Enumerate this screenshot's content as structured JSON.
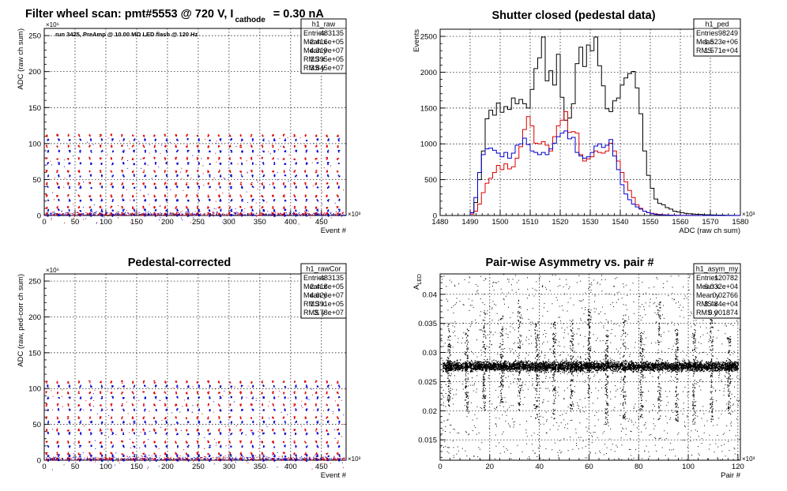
{
  "colors": {
    "black": "#000000",
    "red": "#dd0000",
    "blue": "#0000cc",
    "grid": "#000000",
    "background": "#ffffff"
  },
  "chart_data": [
    {
      "id": "raw",
      "type": "scatter",
      "title_parts": [
        "Filter wheel scan: pmt#5553 @   720 V, I",
        "cathode",
        "= 0.30 nA"
      ],
      "annotation": "run 3425, PreAmp @ 10.00 MΩ LED flash @  120 Hz",
      "xlabel": "Event #",
      "ylabel": "ADC (raw ch sum)",
      "x_multiplier": "×10³",
      "y_multiplier": "×10⁶",
      "xlim": [
        0,
        490
      ],
      "ylim": [
        0,
        260
      ],
      "x_ticks": [
        0,
        50,
        100,
        150,
        200,
        250,
        300,
        350,
        400,
        450
      ],
      "y_ticks": [
        0,
        50,
        100,
        150,
        200,
        250
      ],
      "grid": true,
      "stats": {
        "name": "h1_raw",
        "rows": [
          [
            "Entries",
            "483135"
          ],
          [
            "Mean x",
            "2.416e+05"
          ],
          [
            "Mean y",
            "4.319e+07"
          ],
          [
            "RMS x",
            "1.395e+05"
          ],
          [
            "RMS y",
            "3.845e+07"
          ]
        ]
      },
      "series": [
        {
          "color": "red",
          "levels": [
            112,
            97,
            80,
            62,
            45,
            28,
            12,
            3
          ]
        },
        {
          "color": "blue",
          "levels": [
            106,
            90,
            73,
            56,
            40,
            22,
            8,
            1
          ]
        }
      ],
      "cluster_period": 17.5
    },
    {
      "id": "ped",
      "type": "histogram",
      "title": "Shutter closed (pedestal data)",
      "xlabel": "ADC (raw ch sum)",
      "ylabel": "Events",
      "x_multiplier": "×10³",
      "xlim": [
        1480,
        1580
      ],
      "ylim": [
        0,
        2600
      ],
      "x_ticks": [
        1480,
        1490,
        1500,
        1510,
        1520,
        1530,
        1540,
        1550,
        1560,
        1570,
        1580
      ],
      "y_ticks": [
        0,
        500,
        1000,
        1500,
        2000,
        2500
      ],
      "grid": true,
      "stats": {
        "name": "h1_ped",
        "rows": [
          [
            "Entries",
            "98249"
          ],
          [
            "Mean",
            "1.523e+06"
          ],
          [
            "RMS",
            "1.571e+04"
          ]
        ]
      },
      "bin_start": 1490,
      "bin_width": 1.25,
      "series": [
        {
          "color": "black",
          "values": [
            40,
            180,
            500,
            900,
            1350,
            1470,
            1400,
            1570,
            1440,
            1520,
            1480,
            1640,
            1560,
            1620,
            1560,
            1500,
            1760,
            2050,
            2200,
            2490,
            1880,
            2020,
            1820,
            2250,
            1650,
            1330,
            1360,
            1560,
            2120,
            2350,
            2080,
            2380,
            2300,
            2490,
            2090,
            1810,
            1490,
            1450,
            1600,
            1640,
            1820,
            1920,
            1980,
            2010,
            1780,
            1420,
            900,
            560,
            380,
            230,
            170,
            150,
            110,
            90,
            60,
            50,
            40,
            30,
            25,
            20,
            15,
            15,
            10,
            10,
            8,
            6,
            5,
            5,
            3,
            3,
            2,
            2
          ]
        },
        {
          "color": "red",
          "values": [
            20,
            60,
            160,
            320,
            450,
            520,
            600,
            700,
            640,
            720,
            650,
            680,
            800,
            960,
            1200,
            1380,
            1250,
            1010,
            1000,
            1030,
            980,
            900,
            1100,
            1250,
            1330,
            1450,
            1160,
            1170,
            1150,
            850,
            760,
            790,
            820,
            900,
            880,
            870,
            900,
            1010,
            900,
            760,
            600,
            470,
            350,
            250,
            150,
            100,
            60,
            40,
            30,
            20,
            15,
            10,
            8,
            5,
            4,
            3,
            2,
            2,
            1,
            1,
            1,
            0,
            0,
            0,
            0,
            0,
            0,
            0,
            0,
            0,
            0,
            0
          ]
        },
        {
          "color": "blue",
          "values": [
            40,
            250,
            600,
            850,
            930,
            940,
            910,
            870,
            820,
            880,
            800,
            870,
            980,
            1000,
            1080,
            990,
            900,
            880,
            850,
            880,
            850,
            930,
            1010,
            1100,
            1150,
            1180,
            1070,
            1090,
            880,
            830,
            800,
            820,
            880,
            970,
            1000,
            950,
            980,
            1060,
            830,
            640,
            430,
            300,
            220,
            160,
            120,
            90,
            60,
            40,
            25,
            15,
            10,
            8,
            5,
            4,
            3,
            2,
            2,
            1,
            1,
            1,
            0,
            0,
            0,
            0,
            0,
            0,
            0,
            0,
            0,
            0,
            0,
            0
          ]
        }
      ]
    },
    {
      "id": "rawcor",
      "type": "scatter",
      "title": "Pedestal-corrected",
      "xlabel": "Event #",
      "ylabel": "ADC (raw, ped-corr ch sum)",
      "x_multiplier": "×10³",
      "y_multiplier": "×10⁶",
      "xlim": [
        0,
        490
      ],
      "ylim": [
        0,
        260
      ],
      "x_ticks": [
        0,
        50,
        100,
        150,
        200,
        250,
        300,
        350,
        400,
        450
      ],
      "y_ticks": [
        0,
        50,
        100,
        150,
        200,
        250
      ],
      "grid": true,
      "stats": {
        "name": "h1_rawCor",
        "rows": [
          [
            "Entries",
            "483135"
          ],
          [
            "Mean x",
            "2.418e+05"
          ],
          [
            "Mean y",
            "4.626e+07"
          ],
          [
            "RMS x",
            "1.391e+05"
          ],
          [
            "RMS y",
            "3.78e+07"
          ]
        ]
      },
      "series": [
        {
          "color": "red",
          "levels": [
            110,
            95,
            78,
            60,
            43,
            26,
            10,
            2
          ]
        },
        {
          "color": "blue",
          "levels": [
            104,
            88,
            71,
            54,
            38,
            20,
            7,
            1
          ]
        }
      ],
      "cluster_period": 17.5
    },
    {
      "id": "asym",
      "type": "scatter",
      "title": "Pair-wise Asymmetry vs. pair #",
      "xlabel": "Pair #",
      "ylabel": "A",
      "ylabel_sub": "LED",
      "x_multiplier": "×10³",
      "xlim": [
        0,
        121
      ],
      "ylim": [
        0.0115,
        0.0435
      ],
      "x_ticks": [
        0,
        20,
        40,
        60,
        80,
        100,
        120
      ],
      "y_ticks": [
        0.015,
        0.02,
        0.025,
        0.03,
        0.035,
        0.04
      ],
      "grid": true,
      "stats": {
        "name": "h1_asym_my",
        "rows": [
          [
            "Entries",
            "120782"
          ],
          [
            "Mean x",
            "6.032e+04"
          ],
          [
            "Mean y",
            "0.02766"
          ],
          [
            "RMS x",
            "3.484e+04"
          ],
          [
            "RMS y",
            "0.001874"
          ]
        ]
      },
      "band_center": 0.0277,
      "band_halfwidth": 0.0012,
      "spike_period": 7.05
    }
  ]
}
